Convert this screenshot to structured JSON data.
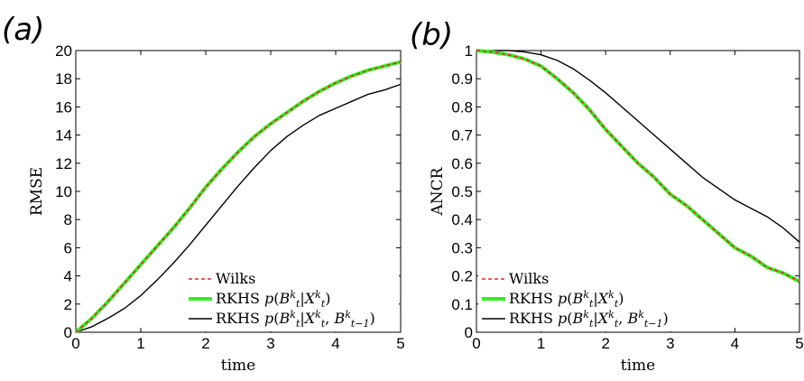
{
  "figure": {
    "panels": [
      "(a)",
      "(b)"
    ]
  },
  "colors": {
    "wilks": "#e8262d",
    "rkhs_a": "#33ee22",
    "rkhs_b": "#000000"
  },
  "chart_data": [
    {
      "type": "line",
      "panel_label": "(a)",
      "xlabel": "time",
      "ylabel": "RMSE",
      "xlim": [
        0,
        5
      ],
      "ylim": [
        0,
        20
      ],
      "xticks": [
        0,
        1,
        2,
        3,
        4,
        5
      ],
      "yticks": [
        0,
        2,
        4,
        6,
        8,
        10,
        12,
        14,
        16,
        18,
        20
      ],
      "grid": false,
      "legend_position": "bottom-right",
      "x": [
        0,
        0.25,
        0.5,
        0.75,
        1.0,
        1.25,
        1.5,
        1.75,
        2.0,
        2.25,
        2.5,
        2.75,
        3.0,
        3.25,
        3.5,
        3.75,
        4.0,
        4.25,
        4.5,
        4.75,
        5.0
      ],
      "series": [
        {
          "name": "Wilks",
          "style": "dashed",
          "color": "#e8262d",
          "values": [
            0,
            1.0,
            2.2,
            3.5,
            4.8,
            6.1,
            7.4,
            8.8,
            10.3,
            11.6,
            12.8,
            13.9,
            14.8,
            15.6,
            16.4,
            17.1,
            17.7,
            18.2,
            18.6,
            18.9,
            19.2
          ]
        },
        {
          "name": "RKHS",
          "formula": "p(B_t^k | X_t^k)",
          "style": "solid-thick",
          "color": "#33ee22",
          "values": [
            0,
            1.0,
            2.2,
            3.5,
            4.8,
            6.1,
            7.4,
            8.8,
            10.3,
            11.6,
            12.8,
            13.9,
            14.8,
            15.6,
            16.4,
            17.1,
            17.7,
            18.2,
            18.6,
            18.9,
            19.2
          ]
        },
        {
          "name": "RKHS",
          "formula": "p(B_t^k | X_t^k, B_{t-1}^k)",
          "style": "solid",
          "color": "#000000",
          "values": [
            0,
            0.4,
            1.0,
            1.7,
            2.6,
            3.7,
            4.9,
            6.2,
            7.6,
            9.0,
            10.4,
            11.7,
            12.9,
            13.9,
            14.7,
            15.4,
            15.9,
            16.4,
            16.9,
            17.2,
            17.6
          ]
        }
      ]
    },
    {
      "type": "line",
      "panel_label": "(b)",
      "xlabel": "time",
      "ylabel": "ANCR",
      "xlim": [
        0,
        5
      ],
      "ylim": [
        0,
        1
      ],
      "xticks": [
        0,
        1,
        2,
        3,
        4,
        5
      ],
      "yticks": [
        0,
        0.1,
        0.2,
        0.3,
        0.4,
        0.5,
        0.6,
        0.7,
        0.8,
        0.9,
        1
      ],
      "grid": false,
      "legend_position": "bottom-left",
      "x": [
        0,
        0.25,
        0.5,
        0.75,
        1.0,
        1.25,
        1.5,
        1.75,
        2.0,
        2.25,
        2.5,
        2.75,
        3.0,
        3.25,
        3.5,
        3.75,
        4.0,
        4.25,
        4.5,
        4.75,
        5.0
      ],
      "series": [
        {
          "name": "Wilks",
          "style": "dashed",
          "color": "#e8262d",
          "values": [
            1.0,
            0.995,
            0.985,
            0.97,
            0.945,
            0.9,
            0.85,
            0.79,
            0.72,
            0.66,
            0.6,
            0.55,
            0.49,
            0.45,
            0.4,
            0.35,
            0.3,
            0.27,
            0.23,
            0.21,
            0.18
          ]
        },
        {
          "name": "RKHS",
          "formula": "p(B_t^k | X_t^k)",
          "style": "solid-thick",
          "color": "#33ee22",
          "values": [
            1.0,
            0.995,
            0.985,
            0.97,
            0.945,
            0.9,
            0.85,
            0.79,
            0.72,
            0.66,
            0.6,
            0.55,
            0.49,
            0.45,
            0.4,
            0.35,
            0.3,
            0.27,
            0.23,
            0.21,
            0.18
          ]
        },
        {
          "name": "RKHS",
          "formula": "p(B_t^k | X_t^k, B_{t-1}^k)",
          "style": "solid",
          "color": "#000000",
          "values": [
            1.0,
            1.0,
            1.0,
            0.995,
            0.985,
            0.965,
            0.935,
            0.895,
            0.85,
            0.8,
            0.75,
            0.7,
            0.65,
            0.6,
            0.55,
            0.51,
            0.47,
            0.44,
            0.41,
            0.37,
            0.32
          ]
        }
      ]
    }
  ]
}
